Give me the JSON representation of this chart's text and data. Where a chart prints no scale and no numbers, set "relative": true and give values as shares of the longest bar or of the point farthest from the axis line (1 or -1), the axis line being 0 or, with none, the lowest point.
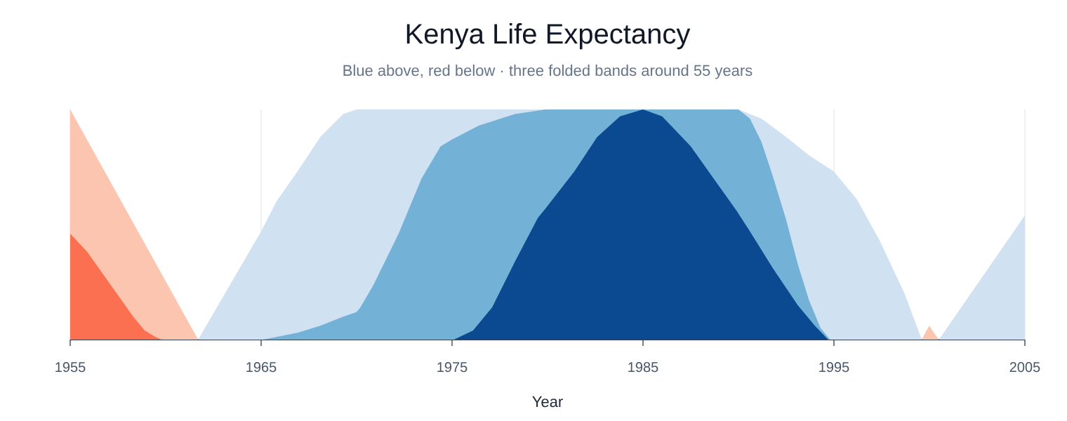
{
  "chart_data": {
    "type": "area",
    "title": "Kenya Life Expectancy",
    "subtitle": "Blue above, red below · three folded bands around 55 years",
    "xlabel": "Year",
    "relative": true,
    "xlim": [
      1955,
      2005
    ],
    "xticks": [
      1955,
      1965,
      1975,
      1985,
      1995,
      2005
    ],
    "grid": "x",
    "series": [
      {
        "color": "#fcc5af",
        "x": [
          1955,
          1961.7,
          1999.6,
          1999.85,
          2000.0,
          2000.15,
          2000.5
        ],
        "values": [
          1,
          0,
          0,
          0.04,
          0.06,
          0.04,
          0
        ]
      },
      {
        "color": "#fb7050",
        "x": [
          1955,
          1955.9,
          1956.5,
          1957.1,
          1957.7,
          1958.3,
          1958.9,
          1959.5,
          1959.8
        ],
        "values": [
          0.46,
          0.38,
          0.31,
          0.24,
          0.17,
          0.1,
          0.04,
          0.01,
          0
        ]
      },
      {
        "color": "#d0e1f2",
        "x": [
          1961.7,
          1965,
          1965.8,
          1966.9,
          1968.1,
          1969.3,
          1970,
          1990,
          1991.2,
          1992.5,
          1993.7,
          1995,
          1996.2,
          1997.4,
          1998.7,
          1999.6,
          2000.5,
          2005
        ],
        "values": [
          0,
          0.47,
          0.6,
          0.73,
          0.88,
          0.98,
          1,
          1,
          0.96,
          0.88,
          0.8,
          0.73,
          0.61,
          0.43,
          0.2,
          0,
          0,
          0.54
        ]
      },
      {
        "color": "#74b1d6",
        "x": [
          1965.1,
          1966.9,
          1968.1,
          1969.3,
          1970,
          1970.2,
          1970.9,
          1972.2,
          1973.4,
          1974.4,
          1975,
          1976.4,
          1978.3,
          1979.9,
          1990,
          1990.6,
          1991.2,
          1991.8,
          1992.5,
          1993.1,
          1993.7,
          1994.3,
          1994.8
        ],
        "values": [
          0,
          0.03,
          0.06,
          0.1,
          0.12,
          0.14,
          0.24,
          0.46,
          0.7,
          0.84,
          0.87,
          0.93,
          0.98,
          1,
          1,
          0.96,
          0.86,
          0.71,
          0.52,
          0.33,
          0.17,
          0.05,
          0
        ]
      },
      {
        "color": "#0b4a90",
        "x": [
          1975.1,
          1976.1,
          1977.1,
          1978.3,
          1979.5,
          1979.9,
          1981.4,
          1982.6,
          1983.8,
          1985,
          1986,
          1987.5,
          1988.7,
          1989.9,
          1990.6,
          1991.8,
          1993.1,
          1994,
          1994.7
        ],
        "values": [
          0,
          0.04,
          0.14,
          0.34,
          0.53,
          0.57,
          0.73,
          0.88,
          0.97,
          1,
          0.97,
          0.84,
          0.7,
          0.56,
          0.47,
          0.31,
          0.15,
          0.06,
          0
        ]
      }
    ]
  }
}
